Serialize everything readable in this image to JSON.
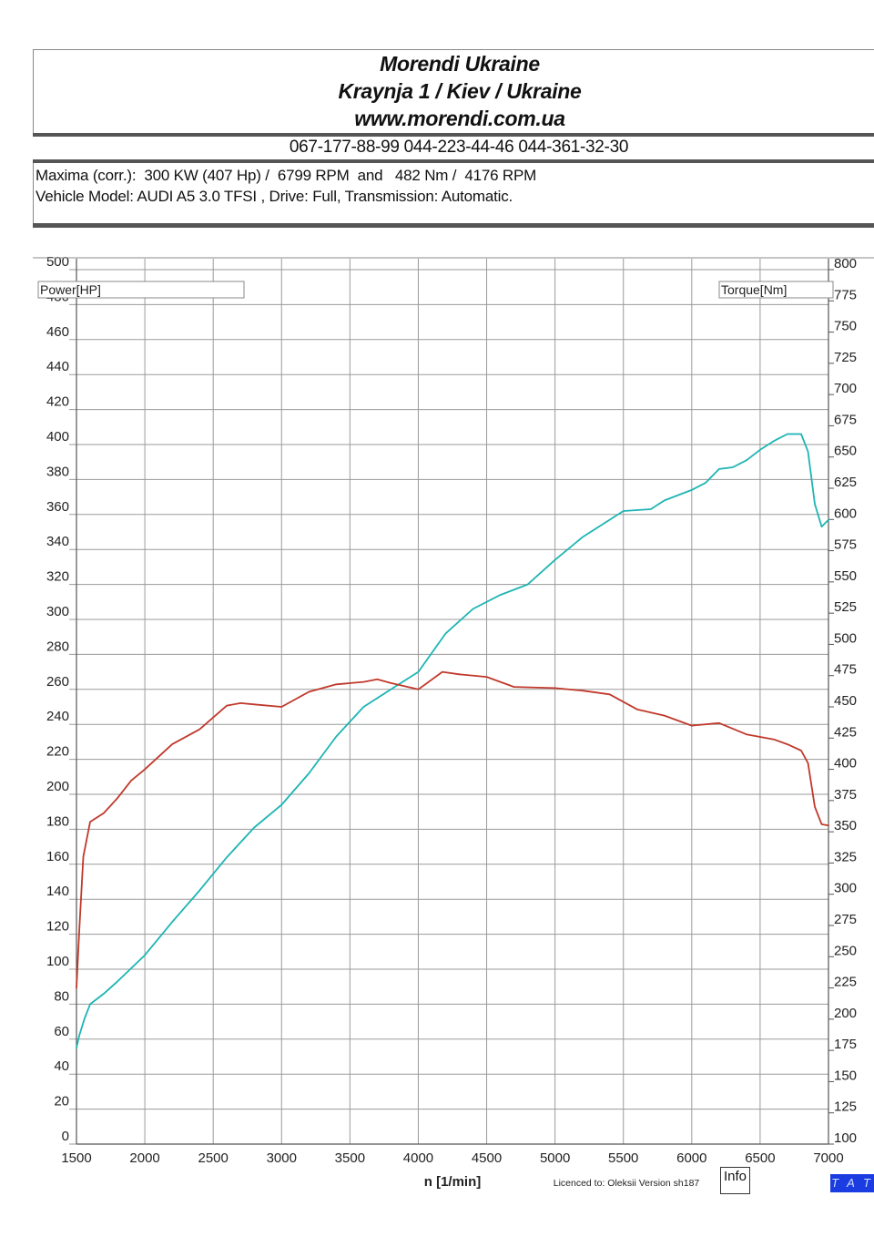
{
  "header": {
    "company": "Morendi Ukraine",
    "address": "Kraynja 1 / Kiev / Ukraine",
    "website": "www.morendi.com.ua",
    "phones": "067-177-88-99 044-223-44-46 044-361-32-30",
    "maxima": "Maxima (corr.):  300 KW (407 Hp) /  6799 RPM  and   482 Nm /  4176 RPM",
    "vehicle": "Vehicle Model: AUDI A5 3.0 TFSI , Drive: Full, Transmission: Automatic."
  },
  "footer": {
    "x_axis_title": "n  [1/min]",
    "licence": "Licenced to: Oleksii   Version sh187",
    "info_button": "Info",
    "badge": "T A T"
  },
  "colors": {
    "power": "#1eb4b4",
    "torque": "#c0392b",
    "grid": "#9a9a9a",
    "badge": "#1a3ce0"
  },
  "chart_data": {
    "type": "line",
    "title": "",
    "xlabel": "n  [1/min]",
    "ylabel_left": "Power[HP]",
    "ylabel_right": "Torque[Nm]",
    "xlim": [
      1500,
      7000
    ],
    "ylim_left": [
      0,
      500
    ],
    "ylim_right": [
      100,
      800
    ],
    "grid": true,
    "x_ticks": [
      1500,
      2000,
      2500,
      3000,
      3500,
      4000,
      4500,
      5000,
      5500,
      6000,
      6500,
      7000
    ],
    "left_ticks": [
      0,
      20,
      40,
      60,
      80,
      100,
      120,
      140,
      160,
      180,
      200,
      220,
      240,
      260,
      280,
      300,
      320,
      340,
      360,
      380,
      400,
      420,
      440,
      460,
      480,
      500
    ],
    "right_ticks": [
      100,
      125,
      150,
      175,
      200,
      225,
      250,
      275,
      300,
      325,
      350,
      375,
      400,
      425,
      450,
      475,
      500,
      525,
      550,
      575,
      600,
      625,
      650,
      675,
      700,
      725,
      750,
      775,
      800
    ],
    "series": [
      {
        "name": "Power",
        "axis": "left",
        "color": "#1eb4b4",
        "x": [
          1500,
          1520,
          1560,
          1600,
          1700,
          1800,
          2000,
          2200,
          2400,
          2600,
          2800,
          3000,
          3200,
          3400,
          3600,
          3800,
          4000,
          4200,
          4400,
          4600,
          4800,
          5000,
          5200,
          5400,
          5500,
          5700,
          5800,
          6000,
          6100,
          6200,
          6300,
          6400,
          6500,
          6600,
          6700,
          6800,
          6850,
          6900,
          6950,
          7000
        ],
        "y": [
          55,
          62,
          72,
          80,
          86,
          93,
          108,
          127,
          145,
          164,
          181,
          194,
          212,
          233,
          250,
          260,
          270,
          292,
          306,
          314,
          320,
          334,
          347,
          357,
          362,
          363,
          368,
          374,
          378,
          386,
          387,
          391,
          397,
          402,
          406,
          406,
          396,
          366,
          353,
          357
        ]
      },
      {
        "name": "Torque",
        "axis": "right",
        "color": "#c0392b",
        "x": [
          1500,
          1520,
          1550,
          1600,
          1700,
          1800,
          1900,
          2000,
          2200,
          2400,
          2600,
          2700,
          2800,
          3000,
          3200,
          3400,
          3600,
          3700,
          3800,
          4000,
          4176,
          4300,
          4500,
          4700,
          5000,
          5200,
          5400,
          5600,
          5800,
          6000,
          6200,
          6400,
          6600,
          6700,
          6800,
          6850,
          6900,
          6950,
          7000
        ],
        "y": [
          225,
          270,
          330,
          358,
          365,
          377,
          391,
          400,
          420,
          432,
          451,
          453,
          452,
          450,
          462,
          468,
          470,
          472,
          469,
          464,
          478,
          476,
          474,
          466,
          465,
          463,
          460,
          448,
          443,
          435,
          437,
          428,
          424,
          420,
          415,
          405,
          370,
          356,
          355
        ]
      }
    ]
  }
}
